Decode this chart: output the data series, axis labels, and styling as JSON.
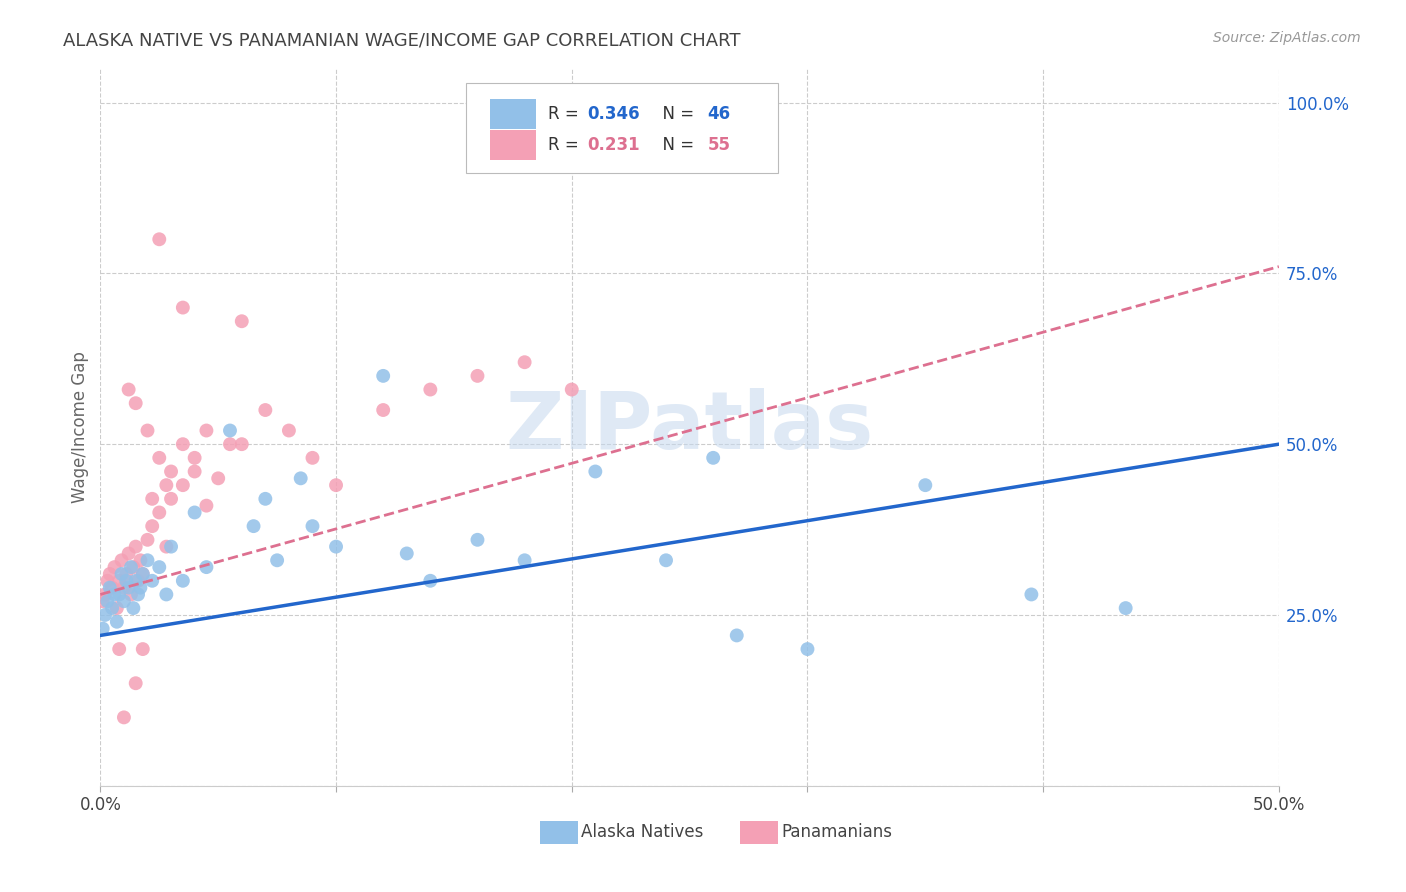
{
  "title": "ALASKA NATIVE VS PANAMANIAN WAGE/INCOME GAP CORRELATION CHART",
  "source": "Source: ZipAtlas.com",
  "ylabel": "Wage/Income Gap",
  "xlim": [
    0.0,
    0.5
  ],
  "ylim": [
    0.0,
    1.05
  ],
  "ytick_positions": [
    0.25,
    0.5,
    0.75,
    1.0
  ],
  "ytick_labels": [
    "25.0%",
    "50.0%",
    "75.0%",
    "100.0%"
  ],
  "xtick_positions": [
    0.0,
    0.1,
    0.2,
    0.3,
    0.4,
    0.5
  ],
  "xtick_labels": [
    "0.0%",
    "",
    "",
    "",
    "",
    "50.0%"
  ],
  "watermark": "ZIPatlas",
  "color_blue": "#92C0E8",
  "color_pink": "#F4A0B5",
  "line_blue": "#2266CC",
  "line_pink": "#DD7090",
  "background": "#FFFFFF",
  "alaska_x": [
    0.001,
    0.002,
    0.003,
    0.004,
    0.005,
    0.006,
    0.007,
    0.008,
    0.009,
    0.01,
    0.011,
    0.012,
    0.013,
    0.014,
    0.015,
    0.016,
    0.017,
    0.018,
    0.02,
    0.022,
    0.025,
    0.028,
    0.03,
    0.035,
    0.04,
    0.045,
    0.055,
    0.065,
    0.075,
    0.085,
    0.1,
    0.12,
    0.14,
    0.18,
    0.21,
    0.24,
    0.27,
    0.3,
    0.35,
    0.395,
    0.435,
    0.07,
    0.09,
    0.13,
    0.16,
    0.26
  ],
  "alaska_y": [
    0.23,
    0.25,
    0.27,
    0.29,
    0.26,
    0.28,
    0.24,
    0.28,
    0.31,
    0.27,
    0.3,
    0.29,
    0.32,
    0.26,
    0.3,
    0.28,
    0.29,
    0.31,
    0.33,
    0.3,
    0.32,
    0.28,
    0.35,
    0.3,
    0.4,
    0.32,
    0.52,
    0.38,
    0.33,
    0.45,
    0.35,
    0.6,
    0.3,
    0.33,
    0.46,
    0.33,
    0.22,
    0.2,
    0.44,
    0.28,
    0.26,
    0.42,
    0.38,
    0.34,
    0.36,
    0.48
  ],
  "panama_x": [
    0.001,
    0.002,
    0.003,
    0.004,
    0.005,
    0.006,
    0.007,
    0.008,
    0.009,
    0.01,
    0.011,
    0.012,
    0.013,
    0.014,
    0.015,
    0.016,
    0.017,
    0.018,
    0.02,
    0.022,
    0.025,
    0.028,
    0.03,
    0.035,
    0.04,
    0.045,
    0.015,
    0.02,
    0.025,
    0.028,
    0.03,
    0.035,
    0.04,
    0.05,
    0.06,
    0.07,
    0.08,
    0.09,
    0.1,
    0.12,
    0.14,
    0.16,
    0.18,
    0.2,
    0.06,
    0.045,
    0.055,
    0.035,
    0.025,
    0.015,
    0.01,
    0.012,
    0.018,
    0.022,
    0.008
  ],
  "panama_y": [
    0.27,
    0.28,
    0.3,
    0.31,
    0.29,
    0.32,
    0.26,
    0.3,
    0.33,
    0.29,
    0.31,
    0.34,
    0.28,
    0.32,
    0.35,
    0.3,
    0.33,
    0.31,
    0.36,
    0.38,
    0.4,
    0.35,
    0.42,
    0.44,
    0.46,
    0.41,
    0.56,
    0.52,
    0.48,
    0.44,
    0.46,
    0.5,
    0.48,
    0.45,
    0.5,
    0.55,
    0.52,
    0.48,
    0.44,
    0.55,
    0.58,
    0.6,
    0.62,
    0.58,
    0.68,
    0.52,
    0.5,
    0.7,
    0.8,
    0.15,
    0.1,
    0.58,
    0.2,
    0.42,
    0.2
  ],
  "blue_line_x": [
    0.0,
    0.5
  ],
  "blue_line_y": [
    0.22,
    0.5
  ],
  "pink_line_x": [
    0.0,
    0.5
  ],
  "pink_line_y": [
    0.28,
    0.76
  ]
}
